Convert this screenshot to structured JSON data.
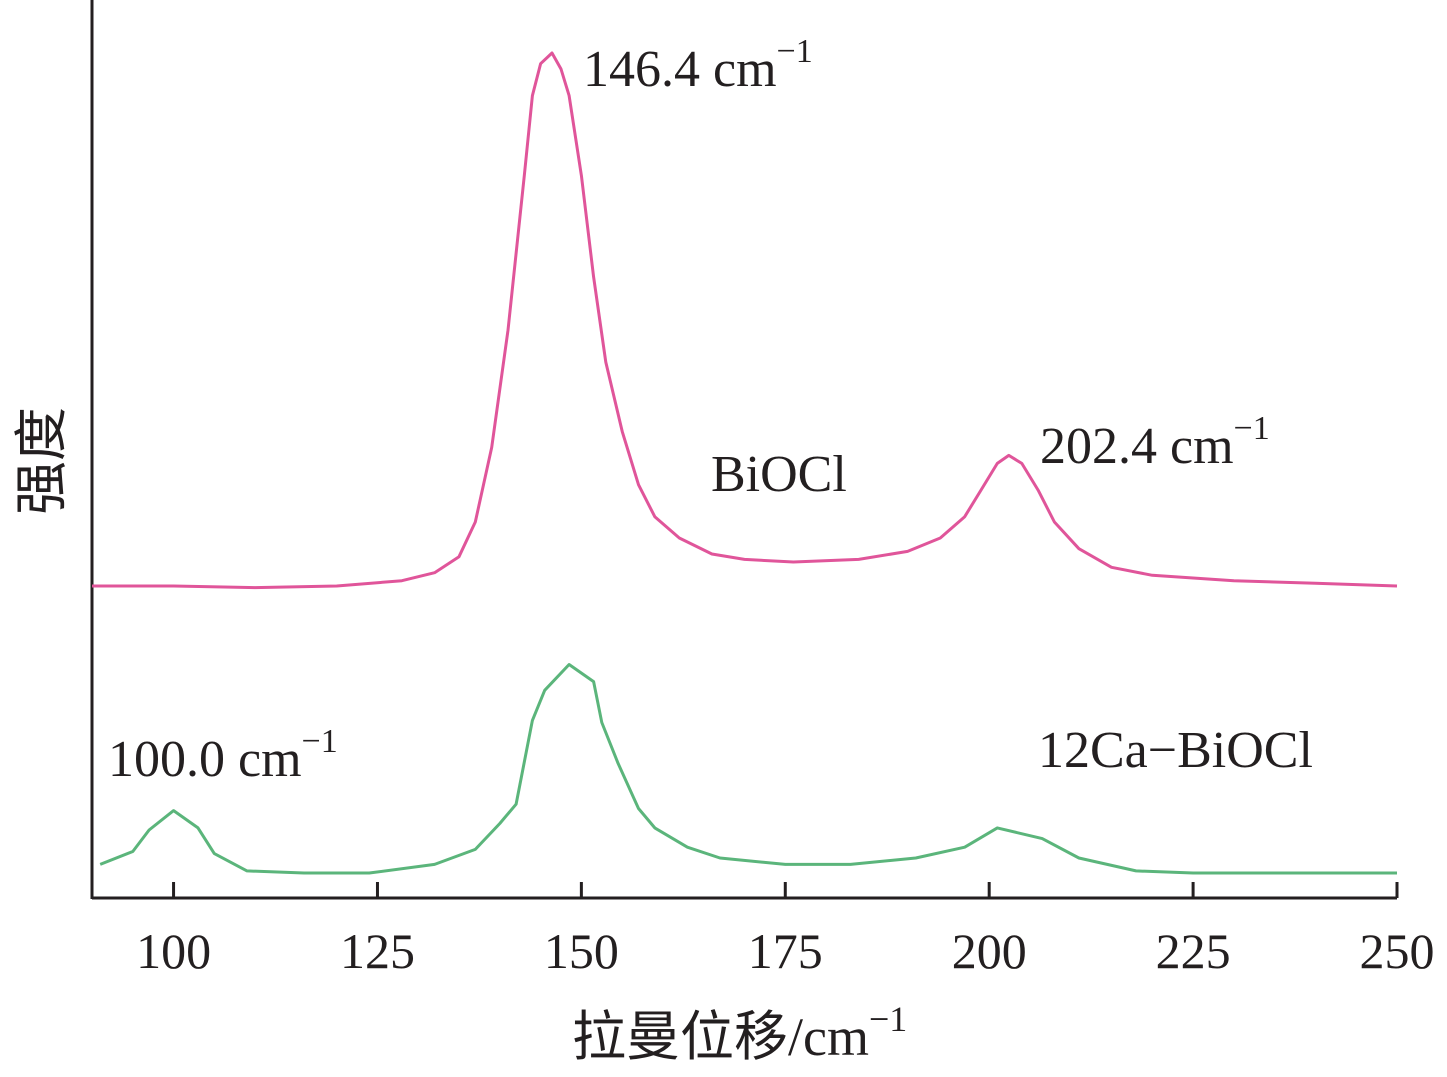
{
  "chart_data": {
    "type": "line",
    "xlabel": "拉曼位移/cm",
    "xlabel_sup": "−1",
    "ylabel": "强度",
    "xlim": [
      90,
      250
    ],
    "xticks": [
      "100",
      "125",
      "150",
      "175",
      "200",
      "225",
      "250"
    ],
    "xtick_values": [
      100,
      125,
      150,
      175,
      200,
      225,
      250
    ],
    "grid": false,
    "legend": "none",
    "y_axis_ticks": false,
    "colors": {
      "BiOCl": "#e0559a",
      "12Ca-BiOCl": "#5bb57b",
      "axis": "#231f20"
    },
    "series": [
      {
        "name": "BiOCl",
        "x": [
          90,
          100,
          110,
          120,
          128,
          132,
          135,
          137,
          139,
          141,
          143,
          144,
          145,
          146.4,
          147.5,
          148.5,
          150,
          151.5,
          153,
          155,
          157,
          159,
          162,
          166,
          170,
          176,
          184,
          190,
          194,
          197,
          199,
          201,
          202.4,
          204,
          206,
          208,
          211,
          215,
          220,
          230,
          240,
          250
        ],
        "y": [
          0.0,
          0.0,
          -0.003,
          0.0,
          0.01,
          0.025,
          0.055,
          0.12,
          0.26,
          0.48,
          0.77,
          0.92,
          0.98,
          1.0,
          0.97,
          0.92,
          0.77,
          0.58,
          0.42,
          0.29,
          0.19,
          0.13,
          0.09,
          0.06,
          0.05,
          0.045,
          0.05,
          0.065,
          0.09,
          0.13,
          0.18,
          0.23,
          0.245,
          0.23,
          0.18,
          0.12,
          0.07,
          0.035,
          0.02,
          0.01,
          0.005,
          0.0
        ]
      },
      {
        "name": "12Ca-BiOCl",
        "x": [
          91,
          95,
          97,
          100,
          103,
          105,
          109,
          116,
          124,
          132,
          137,
          140,
          142,
          144,
          145.5,
          148.5,
          151.5,
          152.5,
          154.5,
          157,
          159,
          163,
          167,
          175,
          183,
          191,
          197,
          201,
          206.5,
          211,
          218,
          225,
          237,
          250
        ],
        "y": [
          0.04,
          0.1,
          0.2,
          0.29,
          0.21,
          0.09,
          0.01,
          0.0,
          0.0,
          0.04,
          0.11,
          0.23,
          0.32,
          0.71,
          0.85,
          0.97,
          0.89,
          0.7,
          0.51,
          0.3,
          0.21,
          0.12,
          0.07,
          0.04,
          0.04,
          0.07,
          0.12,
          0.21,
          0.16,
          0.07,
          0.01,
          0.0,
          0.0,
          0.0
        ]
      }
    ],
    "annotations": [
      {
        "id": "ann-146",
        "text": "146.4 cm",
        "sup": "−1"
      },
      {
        "id": "ann-202",
        "text": "202.4 cm",
        "sup": "−1"
      },
      {
        "id": "ann-100",
        "text": "100.0 cm",
        "sup": "−1"
      },
      {
        "id": "label-biocl",
        "text": "BiOCl"
      },
      {
        "id": "label-12ca",
        "text": "12Ca−BiOCl"
      }
    ]
  }
}
